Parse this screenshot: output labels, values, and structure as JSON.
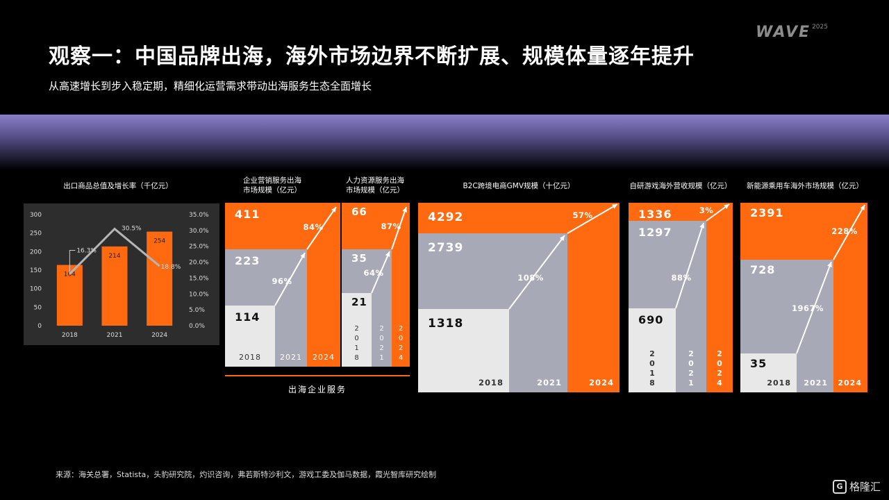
{
  "header": {
    "title": "观察一：中国品牌出海，海外市场边界不断扩展、规模体量逐年提升",
    "subtitle": "从高速增长到步入稳定期，精细化运营需求带动出海服务生态全面增长",
    "logo_word": "WAVE",
    "logo_year": "2025"
  },
  "colors": {
    "orange": "#ff6a10",
    "grey": "#a8a9b6",
    "light": "#e8e8e8",
    "dark_panel": "#2d2d2d"
  },
  "bracket_label": "出海企业服务",
  "source": "来源：海关总署，Statista，头豹研究院，灼识咨询，弗若斯特沙利文，游戏工委及伽马数据，霞光智库研究绘制",
  "watermark": {
    "icon": "G",
    "text": "格隆汇"
  },
  "chart_data": [
    {
      "id": "exports",
      "type": "bar",
      "title": "出口商品总值及增长率（千亿元）",
      "categories": [
        "2018",
        "2021",
        "2024"
      ],
      "values": [
        164,
        214,
        254
      ],
      "value_labels": [
        "164",
        "214",
        "254"
      ],
      "line": {
        "values": [
          16.3,
          30.5,
          18.8
        ],
        "labels": [
          "16.3%",
          "30.5%",
          "18.8%"
        ]
      },
      "ylim": [
        0,
        300
      ],
      "yticks": [
        "0",
        "50",
        "100",
        "150",
        "200",
        "250",
        "300"
      ],
      "y2lim": [
        0,
        35
      ],
      "y2ticks": [
        "0.0%",
        "5.0%",
        "10.0%",
        "15.0%",
        "20.0%",
        "25.0%",
        "30.0%",
        "35.0%"
      ]
    },
    {
      "id": "marketing",
      "type": "step-area",
      "title": "企业营销服务出海\n市场规模（亿元）",
      "years": [
        "2018",
        "2021",
        "2024"
      ],
      "values": [
        114,
        223,
        411
      ],
      "value_labels": [
        "114",
        "223",
        "411"
      ],
      "growth": [
        "96%",
        "84%"
      ],
      "year_layout": "row"
    },
    {
      "id": "hr",
      "type": "step-area",
      "title": "人力资源服务出海\n市场规模（亿元）",
      "years": [
        "2018",
        "2021",
        "2024"
      ],
      "values": [
        21,
        35,
        66
      ],
      "value_labels": [
        "21",
        "35",
        "66"
      ],
      "growth": [
        "64%",
        "87%"
      ],
      "year_layout": "column"
    },
    {
      "id": "b2c",
      "type": "step-area",
      "title": "B2C跨境电商GMV规模（十亿元）",
      "years": [
        "2018",
        "2021",
        "2024"
      ],
      "values": [
        1318,
        2739,
        4292
      ],
      "value_labels": [
        "1318",
        "2739",
        "4292"
      ],
      "growth": [
        "108%",
        "57%"
      ],
      "year_layout": "row"
    },
    {
      "id": "games",
      "type": "step-area",
      "title": "自研游戏海外营收规模（亿元）",
      "years": [
        "2018",
        "2021",
        "2024"
      ],
      "values": [
        690,
        1297,
        1336
      ],
      "value_labels": [
        "690",
        "1297",
        "1336"
      ],
      "growth": [
        "88%",
        "3%"
      ],
      "year_layout": "column"
    },
    {
      "id": "ev",
      "type": "step-area",
      "title": "新能源乘用车海外市场规模（亿元）",
      "years": [
        "2018",
        "2021",
        "2024"
      ],
      "values": [
        35,
        728,
        2391
      ],
      "value_labels": [
        "35",
        "728",
        "2391"
      ],
      "growth": [
        "1967%",
        "228%"
      ],
      "year_layout": "row"
    }
  ]
}
